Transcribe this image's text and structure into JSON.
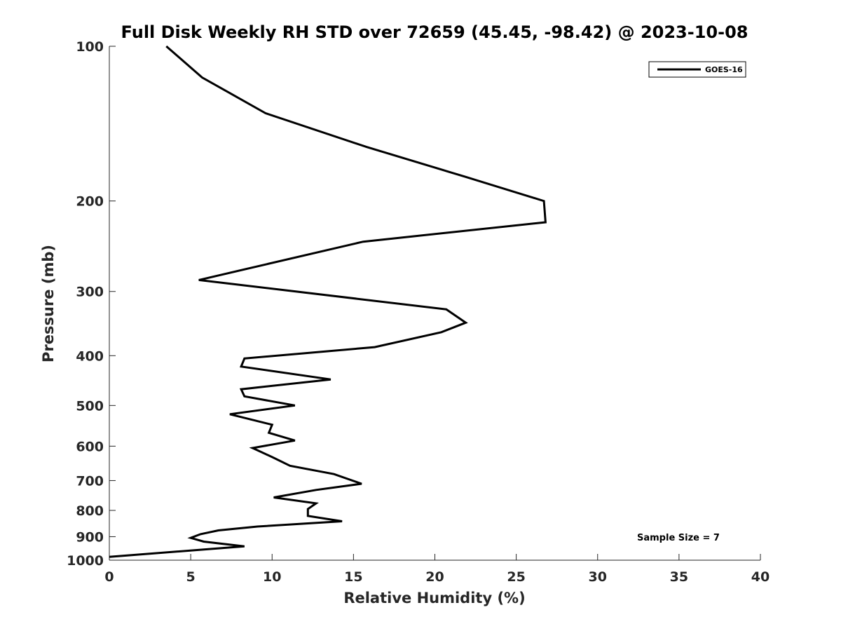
{
  "chart_data": {
    "type": "line",
    "title": "Full Disk Weekly RH STD over 72659 (45.45, -98.42) @ 2023-10-08",
    "xlabel": "Relative Humidity (%)",
    "ylabel": "Pressure (mb)",
    "xlim": [
      0,
      40
    ],
    "ylim": [
      100,
      1000
    ],
    "yscale": "log",
    "y_reversed": true,
    "xticks": [
      0,
      5,
      10,
      15,
      20,
      25,
      30,
      35,
      40
    ],
    "yticks": [
      100,
      200,
      300,
      400,
      500,
      600,
      700,
      800,
      900,
      1000
    ],
    "grid": false,
    "legend_position": "top-right",
    "annotation": "Sample Size = 7",
    "series": [
      {
        "name": "GOES-16",
        "color": "#000000",
        "x": [
          3.5,
          5.7,
          9.6,
          15.8,
          22.0,
          26.7,
          26.8,
          15.6,
          5.5,
          20.7,
          21.9,
          20.4,
          16.3,
          8.3,
          8.1,
          13.6,
          8.1,
          8.3,
          11.4,
          7.4,
          10.0,
          9.8,
          11.4,
          8.8,
          10.0,
          11.1,
          13.8,
          15.5,
          12.7,
          10.1,
          12.7,
          12.2,
          12.2,
          14.3,
          9.1,
          6.7,
          5.6,
          5.0,
          5.8,
          8.3,
          0.0
        ],
        "y": [
          100,
          115,
          135,
          157,
          180,
          200,
          220,
          240,
          285,
          325,
          345,
          360,
          385,
          405,
          420,
          445,
          465,
          480,
          500,
          520,
          545,
          565,
          585,
          605,
          630,
          655,
          680,
          710,
          730,
          755,
          775,
          795,
          820,
          840,
          860,
          875,
          890,
          905,
          920,
          940,
          985
        ]
      }
    ]
  }
}
